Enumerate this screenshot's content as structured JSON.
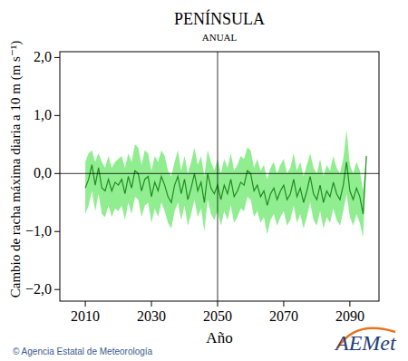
{
  "chart_data": {
    "type": "line",
    "title": "PENÍNSULA",
    "subtitle": "ANUAL",
    "x_label": "Año",
    "y_label": "Cambio de racha máxima diaria a 10 m (m s⁻¹)",
    "source": "© Agencia Estatal de Meteorología",
    "logo": "AEMet",
    "x": [
      2010,
      2011,
      2012,
      2013,
      2014,
      2015,
      2016,
      2017,
      2018,
      2019,
      2020,
      2021,
      2022,
      2023,
      2024,
      2025,
      2026,
      2027,
      2028,
      2029,
      2030,
      2031,
      2032,
      2033,
      2034,
      2035,
      2036,
      2037,
      2038,
      2039,
      2040,
      2041,
      2042,
      2043,
      2044,
      2045,
      2046,
      2047,
      2048,
      2049,
      2050,
      2051,
      2052,
      2053,
      2054,
      2055,
      2056,
      2057,
      2058,
      2059,
      2060,
      2061,
      2062,
      2063,
      2064,
      2065,
      2066,
      2067,
      2068,
      2069,
      2070,
      2071,
      2072,
      2073,
      2074,
      2075,
      2076,
      2077,
      2078,
      2079,
      2080,
      2081,
      2082,
      2083,
      2084,
      2085,
      2086,
      2087,
      2088,
      2089,
      2090,
      2091,
      2092,
      2093,
      2094,
      2095
    ],
    "series": [
      {
        "type": "band",
        "color": "#90ee90",
        "upper": [
          0.2,
          0.35,
          0.4,
          0.2,
          0.35,
          0.2,
          0.1,
          0.3,
          0.1,
          0.2,
          0.25,
          0.3,
          0.1,
          0.35,
          0.2,
          0.5,
          0.45,
          0.15,
          0.4,
          0.35,
          0.05,
          0.3,
          0.2,
          0.4,
          0.3,
          0.05,
          -0.05,
          0.2,
          0.4,
          0.05,
          0.3,
          0.0,
          0.2,
          0.45,
          0.15,
          0.3,
          -0.05,
          0.4,
          0.2,
          0.05,
          0.25,
          0.0,
          0.25,
          0.1,
          0.35,
          0.05,
          0.15,
          0.3,
          0.25,
          0.45,
          0.4,
          0.1,
          0.25,
          0.05,
          0.15,
          -0.1,
          0.1,
          0.2,
          0.0,
          0.15,
          0.25,
          0.0,
          0.1,
          0.35,
          0.05,
          0.2,
          -0.05,
          0.15,
          0.35,
          0.1,
          0.0,
          0.25,
          -0.05,
          0.15,
          0.05,
          0.3,
          0.1,
          0.0,
          0.25,
          0.75,
          0.15,
          0.0,
          0.2,
          0.05,
          -0.3,
          0.35
        ],
        "lower": [
          -0.7,
          -0.55,
          -0.3,
          -0.65,
          -0.35,
          -0.7,
          -0.75,
          -0.55,
          -0.75,
          -0.6,
          -0.65,
          -0.55,
          -0.8,
          -0.5,
          -0.7,
          -0.4,
          -0.45,
          -0.75,
          -0.55,
          -0.5,
          -0.85,
          -0.6,
          -0.75,
          -0.5,
          -0.65,
          -0.85,
          -0.95,
          -0.65,
          -0.5,
          -0.8,
          -0.55,
          -0.9,
          -0.7,
          -0.45,
          -0.75,
          -0.6,
          -1.0,
          -0.45,
          -0.7,
          -0.8,
          -0.65,
          -0.9,
          -0.65,
          -0.8,
          -0.55,
          -0.85,
          -0.75,
          -0.6,
          -0.65,
          -0.4,
          -0.45,
          -0.75,
          -0.65,
          -0.85,
          -0.75,
          -1.05,
          -0.8,
          -0.7,
          -0.9,
          -0.75,
          -0.65,
          -0.9,
          -0.8,
          -0.55,
          -0.85,
          -0.7,
          -0.95,
          -0.75,
          -0.5,
          -0.8,
          -0.9,
          -0.65,
          -0.95,
          -0.75,
          -0.85,
          -0.6,
          -0.8,
          -0.9,
          -0.65,
          -0.35,
          -0.75,
          -0.9,
          -0.7,
          -0.85,
          -1.1,
          0.25
        ]
      },
      {
        "type": "line",
        "color": "#1e8c1e",
        "values": [
          -0.25,
          -0.1,
          0.15,
          -0.2,
          0.1,
          -0.25,
          -0.3,
          -0.1,
          -0.3,
          -0.15,
          -0.2,
          -0.1,
          -0.35,
          -0.05,
          -0.25,
          0.05,
          0.0,
          -0.3,
          -0.1,
          -0.05,
          -0.4,
          -0.15,
          -0.3,
          -0.05,
          -0.2,
          -0.4,
          -0.5,
          -0.2,
          -0.05,
          -0.35,
          -0.1,
          -0.45,
          -0.25,
          0.0,
          -0.3,
          -0.15,
          -0.5,
          0.0,
          -0.25,
          -0.35,
          -0.2,
          -0.45,
          -0.2,
          -0.35,
          -0.1,
          -0.4,
          -0.3,
          -0.15,
          -0.2,
          0.05,
          0.0,
          -0.3,
          -0.2,
          -0.4,
          -0.3,
          -0.55,
          -0.35,
          -0.25,
          -0.45,
          -0.3,
          -0.2,
          -0.45,
          -0.35,
          -0.1,
          -0.4,
          -0.25,
          -0.5,
          -0.3,
          -0.05,
          -0.35,
          -0.45,
          -0.2,
          -0.5,
          -0.3,
          -0.4,
          -0.15,
          -0.35,
          -0.45,
          -0.2,
          0.2,
          -0.3,
          -0.45,
          -0.25,
          -0.4,
          -0.7,
          0.3
        ]
      }
    ],
    "hlines": [
      0
    ],
    "vlines": [
      2050
    ],
    "xlim": [
      2002.3,
      2098.8
    ],
    "ylim": [
      -2.2,
      2.1
    ],
    "xticks": [
      2010,
      2030,
      2050,
      2070,
      2090
    ],
    "yticks": [
      {
        "value": -2,
        "label": "−2,0"
      },
      {
        "value": -1,
        "label": "−1,0"
      },
      {
        "value": 0,
        "label": "0,0"
      },
      {
        "value": 1,
        "label": "1,0"
      },
      {
        "value": 2,
        "label": "2,0"
      }
    ],
    "grid": false
  }
}
